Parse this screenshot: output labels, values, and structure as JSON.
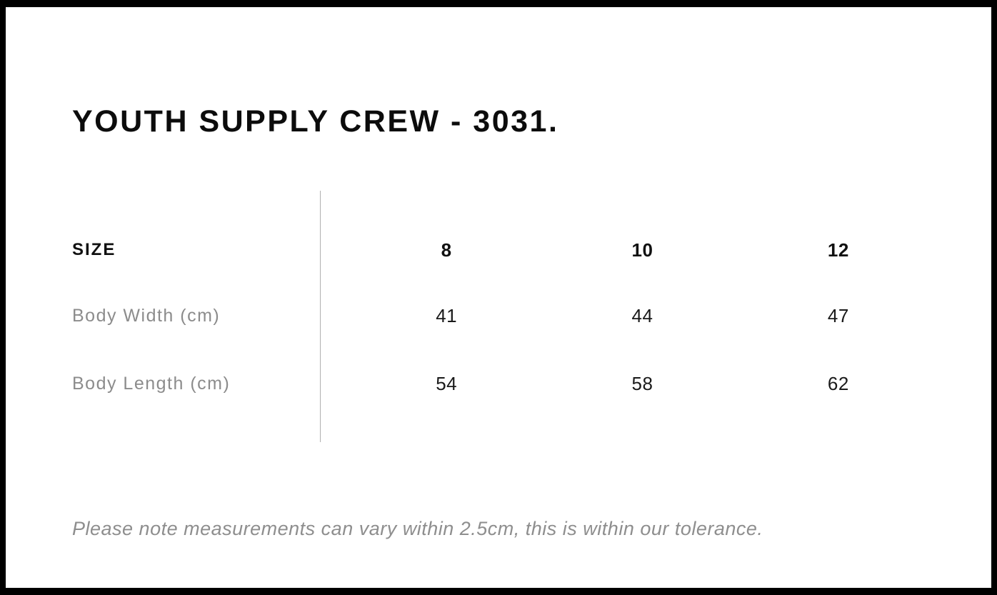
{
  "page": {
    "title": "YOUTH SUPPLY CREW - 3031.",
    "note": "Please note measurements can vary within 2.5cm, this is within our tolerance."
  },
  "size_table": {
    "header_label": "SIZE",
    "columns": [
      "8",
      "10",
      "12"
    ],
    "rows": [
      {
        "label": "Body Width (cm)",
        "values": [
          "41",
          "44",
          "47"
        ]
      },
      {
        "label": "Body Length (cm)",
        "values": [
          "54",
          "58",
          "62"
        ]
      }
    ]
  },
  "colors": {
    "frame": "#000000",
    "background": "#ffffff",
    "heading_text": "#0c0c0c",
    "value_text": "#1a1a1a",
    "muted_label_text": "#8c8c8c",
    "note_text": "#8e8e8e",
    "divider": "#b0b0b0"
  }
}
